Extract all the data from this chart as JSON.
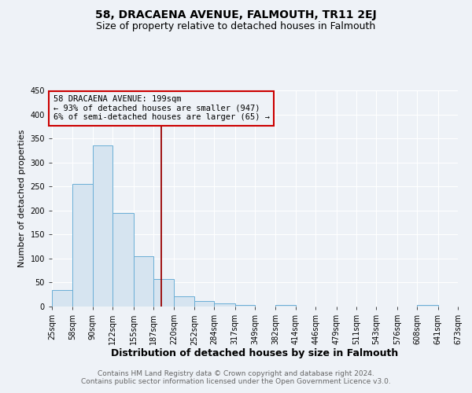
{
  "title": "58, DRACAENA AVENUE, FALMOUTH, TR11 2EJ",
  "subtitle": "Size of property relative to detached houses in Falmouth",
  "xlabel": "Distribution of detached houses by size in Falmouth",
  "ylabel": "Number of detached properties",
  "bin_edges": [
    25,
    58,
    90,
    122,
    155,
    187,
    220,
    252,
    284,
    317,
    349,
    382,
    414,
    446,
    479,
    511,
    543,
    576,
    608,
    641,
    673
  ],
  "bar_heights": [
    35,
    255,
    335,
    195,
    105,
    57,
    21,
    11,
    6,
    3,
    0,
    4,
    0,
    0,
    0,
    0,
    0,
    0,
    4,
    0
  ],
  "bar_color": "#d6e4f0",
  "bar_edge_color": "#6aaed6",
  "property_size": 199,
  "red_line_color": "#990000",
  "annotation_text": "58 DRACAENA AVENUE: 199sqm\n← 93% of detached houses are smaller (947)\n6% of semi-detached houses are larger (65) →",
  "annotation_box_edge_color": "#cc0000",
  "ylim": [
    0,
    450
  ],
  "yticks": [
    0,
    50,
    100,
    150,
    200,
    250,
    300,
    350,
    400,
    450
  ],
  "footer_line1": "Contains HM Land Registry data © Crown copyright and database right 2024.",
  "footer_line2": "Contains public sector information licensed under the Open Government Licence v3.0.",
  "background_color": "#eef2f7",
  "plot_background_color": "#eef2f7",
  "grid_color": "#ffffff",
  "title_fontsize": 10,
  "subtitle_fontsize": 9,
  "xlabel_fontsize": 9,
  "ylabel_fontsize": 8,
  "tick_fontsize": 7,
  "annotation_fontsize": 7.5,
  "footer_fontsize": 6.5
}
